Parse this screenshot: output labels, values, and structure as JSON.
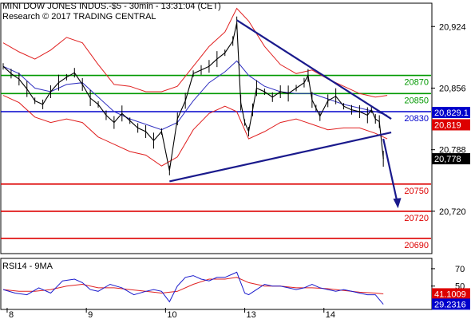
{
  "header": {
    "line1": "MINI DOW JONES INDUS.-$5 - 30min - 13:31:04 (CET)",
    "line2": "Research © 2017 TRADING CENTRAL"
  },
  "chart_data": {
    "type": "line",
    "price_axis": {
      "ylim": [
        20675,
        20948
      ],
      "ticks": [
        20924,
        20856,
        20788,
        20720
      ],
      "tick_labels": [
        "20,924",
        "20,856",
        "20,788",
        "20,720"
      ]
    },
    "x_labels": [
      {
        "label": "8",
        "x": 1
      },
      {
        "label": "9",
        "x": 21
      },
      {
        "label": "10",
        "x": 41
      },
      {
        "label": "13",
        "x": 61
      },
      {
        "label": "14",
        "x": 81
      }
    ],
    "xlim": [
      0,
      100
    ],
    "levels": [
      {
        "value": 20870,
        "label": "20870",
        "color": "#009900",
        "label_color": "#009900"
      },
      {
        "value": 20850,
        "label": "20850",
        "color": "#009900",
        "label_color": "#009900"
      },
      {
        "value": 20830,
        "label": "20830",
        "color": "#0000cc",
        "label_color": "#0000cc"
      },
      {
        "value": 20750,
        "label": "20750",
        "color": "#dd0000",
        "label_color": "#dd0000"
      },
      {
        "value": 20720,
        "label": "20720",
        "color": "#dd0000",
        "label_color": "#dd0000"
      },
      {
        "value": 20690,
        "label": "20690",
        "color": "#dd0000",
        "label_color": "#dd0000"
      }
    ],
    "badges": [
      {
        "value": 20829.1,
        "label": "20,829.1",
        "bg": "#0000cc",
        "fg": "#ffffff"
      },
      {
        "value": 20819,
        "label": "20,819",
        "bg": "#dd0000",
        "fg": "#ffffff"
      },
      {
        "value": 20778,
        "label": "20,778",
        "bg": "#000000",
        "fg": "#ffffff"
      }
    ],
    "trendlines": [
      {
        "name": "resistance",
        "points": [
          [
            59,
            20931
          ],
          [
            98,
            20822
          ]
        ],
        "color": "#1a1a8c"
      },
      {
        "name": "support",
        "points": [
          [
            42,
            20753
          ],
          [
            98,
            20807
          ]
        ],
        "color": "#1a1a8c"
      }
    ],
    "forecast_arrow": {
      "from": [
        96,
        20800
      ],
      "to": [
        99.5,
        20725
      ],
      "color": "#1a1a8c"
    },
    "price": [
      [
        0,
        20880
      ],
      [
        2,
        20872
      ],
      [
        4,
        20866
      ],
      [
        6,
        20855
      ],
      [
        8,
        20842
      ],
      [
        10,
        20838
      ],
      [
        12,
        20852
      ],
      [
        14,
        20862
      ],
      [
        16,
        20868
      ],
      [
        18,
        20873
      ],
      [
        20,
        20860
      ],
      [
        22,
        20845
      ],
      [
        24,
        20838
      ],
      [
        26,
        20826
      ],
      [
        28,
        20818
      ],
      [
        30,
        20828
      ],
      [
        32,
        20820
      ],
      [
        34,
        20812
      ],
      [
        36,
        20808
      ],
      [
        38,
        20798
      ],
      [
        40,
        20808
      ],
      [
        42,
        20765
      ],
      [
        44,
        20822
      ],
      [
        46,
        20842
      ],
      [
        48,
        20872
      ],
      [
        50,
        20876
      ],
      [
        52,
        20880
      ],
      [
        54,
        20888
      ],
      [
        56,
        20895
      ],
      [
        58,
        20908
      ],
      [
        59,
        20928
      ],
      [
        60,
        20840
      ],
      [
        61,
        20818
      ],
      [
        62,
        20808
      ],
      [
        63,
        20832
      ],
      [
        64,
        20856
      ],
      [
        66,
        20852
      ],
      [
        68,
        20846
      ],
      [
        70,
        20852
      ],
      [
        72,
        20850
      ],
      [
        74,
        20856
      ],
      [
        76,
        20862
      ],
      [
        77,
        20870
      ],
      [
        78,
        20843
      ],
      [
        79,
        20834
      ],
      [
        80,
        20825
      ],
      [
        82,
        20842
      ],
      [
        84,
        20847
      ],
      [
        86,
        20836
      ],
      [
        88,
        20832
      ],
      [
        90,
        20830
      ],
      [
        92,
        20826
      ],
      [
        93,
        20832
      ],
      [
        94,
        20822
      ],
      [
        95,
        20819
      ],
      [
        96,
        20778
      ]
    ],
    "bollinger_upper": [
      [
        0,
        20906
      ],
      [
        4,
        20896
      ],
      [
        8,
        20888
      ],
      [
        12,
        20898
      ],
      [
        16,
        20912
      ],
      [
        20,
        20906
      ],
      [
        24,
        20882
      ],
      [
        28,
        20860
      ],
      [
        32,
        20858
      ],
      [
        36,
        20852
      ],
      [
        40,
        20852
      ],
      [
        44,
        20858
      ],
      [
        48,
        20880
      ],
      [
        52,
        20902
      ],
      [
        56,
        20918
      ],
      [
        59,
        20944
      ],
      [
        62,
        20930
      ],
      [
        66,
        20902
      ],
      [
        70,
        20882
      ],
      [
        74,
        20872
      ],
      [
        78,
        20876
      ],
      [
        82,
        20866
      ],
      [
        86,
        20858
      ],
      [
        90,
        20850
      ],
      [
        94,
        20846
      ],
      [
        97,
        20848
      ]
    ],
    "bollinger_lower": [
      [
        0,
        20848
      ],
      [
        4,
        20840
      ],
      [
        8,
        20824
      ],
      [
        12,
        20818
      ],
      [
        16,
        20822
      ],
      [
        20,
        20818
      ],
      [
        24,
        20802
      ],
      [
        28,
        20794
      ],
      [
        32,
        20786
      ],
      [
        36,
        20782
      ],
      [
        40,
        20770
      ],
      [
        44,
        20780
      ],
      [
        48,
        20810
      ],
      [
        52,
        20828
      ],
      [
        56,
        20836
      ],
      [
        59,
        20830
      ],
      [
        62,
        20800
      ],
      [
        66,
        20808
      ],
      [
        70,
        20818
      ],
      [
        74,
        20822
      ],
      [
        78,
        20816
      ],
      [
        82,
        20810
      ],
      [
        86,
        20812
      ],
      [
        90,
        20812
      ],
      [
        94,
        20806
      ],
      [
        97,
        20800
      ]
    ],
    "moving_average": [
      [
        0,
        20880
      ],
      [
        4,
        20872
      ],
      [
        8,
        20856
      ],
      [
        12,
        20852
      ],
      [
        16,
        20860
      ],
      [
        20,
        20862
      ],
      [
        24,
        20846
      ],
      [
        28,
        20830
      ],
      [
        32,
        20822
      ],
      [
        36,
        20816
      ],
      [
        40,
        20810
      ],
      [
        44,
        20818
      ],
      [
        48,
        20842
      ],
      [
        52,
        20862
      ],
      [
        56,
        20874
      ],
      [
        59,
        20886
      ],
      [
        62,
        20870
      ],
      [
        66,
        20858
      ],
      [
        70,
        20852
      ],
      [
        74,
        20850
      ],
      [
        78,
        20850
      ],
      [
        82,
        20844
      ],
      [
        86,
        20838
      ],
      [
        90,
        20834
      ],
      [
        94,
        20830
      ],
      [
        97,
        20826
      ]
    ],
    "rsi_panel": {
      "title": "RSI14 - 9MA",
      "ylim": [
        25,
        80
      ],
      "ticks": [
        70,
        50
      ],
      "tick_labels": [
        "70",
        "50"
      ],
      "badges": [
        {
          "value": 41.1009,
          "label": "41.1009",
          "bg": "#dd0000",
          "fg": "#ffffff"
        },
        {
          "value": 29.2316,
          "label": "29.2316",
          "bg": "#0000cc",
          "fg": "#ffffff"
        }
      ],
      "rsi": [
        [
          0,
          46
        ],
        [
          3,
          42
        ],
        [
          6,
          40
        ],
        [
          9,
          48
        ],
        [
          12,
          42
        ],
        [
          15,
          56
        ],
        [
          18,
          58
        ],
        [
          20,
          54
        ],
        [
          22,
          46
        ],
        [
          24,
          44
        ],
        [
          27,
          52
        ],
        [
          30,
          48
        ],
        [
          33,
          40
        ],
        [
          36,
          44
        ],
        [
          38,
          46
        ],
        [
          40,
          44
        ],
        [
          42,
          32
        ],
        [
          44,
          50
        ],
        [
          46,
          60
        ],
        [
          48,
          62
        ],
        [
          50,
          58
        ],
        [
          52,
          56
        ],
        [
          54,
          60
        ],
        [
          56,
          60
        ],
        [
          58,
          64
        ],
        [
          59,
          66
        ],
        [
          60,
          54
        ],
        [
          61,
          42
        ],
        [
          62,
          40
        ],
        [
          64,
          46
        ],
        [
          66,
          52
        ],
        [
          68,
          50
        ],
        [
          70,
          50
        ],
        [
          72,
          48
        ],
        [
          74,
          46
        ],
        [
          76,
          48
        ],
        [
          78,
          52
        ],
        [
          80,
          48
        ],
        [
          82,
          46
        ],
        [
          84,
          44
        ],
        [
          86,
          46
        ],
        [
          88,
          44
        ],
        [
          90,
          42
        ],
        [
          92,
          40
        ],
        [
          94,
          40
        ],
        [
          96,
          29
        ]
      ],
      "ma": [
        [
          0,
          46
        ],
        [
          4,
          44
        ],
        [
          8,
          44
        ],
        [
          12,
          46
        ],
        [
          16,
          50
        ],
        [
          20,
          52
        ],
        [
          24,
          48
        ],
        [
          28,
          48
        ],
        [
          32,
          46
        ],
        [
          36,
          44
        ],
        [
          40,
          42
        ],
        [
          44,
          44
        ],
        [
          48,
          52
        ],
        [
          52,
          58
        ],
        [
          56,
          58
        ],
        [
          59,
          60
        ],
        [
          62,
          54
        ],
        [
          66,
          50
        ],
        [
          70,
          50
        ],
        [
          74,
          48
        ],
        [
          78,
          48
        ],
        [
          82,
          47
        ],
        [
          86,
          45
        ],
        [
          90,
          43
        ],
        [
          94,
          42
        ],
        [
          96,
          41
        ]
      ]
    }
  }
}
